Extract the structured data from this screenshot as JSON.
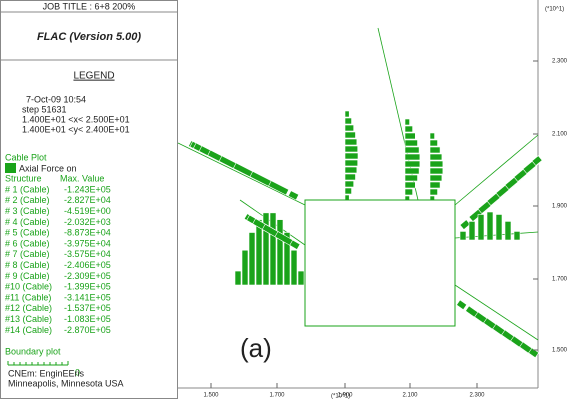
{
  "header": {
    "job_title": "JOB TITLE : 6+8 200%",
    "program": "FLAC (Version 5.00)"
  },
  "legend": {
    "title": "LEGEND",
    "date": "7-Oct-09  10:54",
    "step": "step  51631",
    "xrange": "1.400E+01 <x< 2.500E+01",
    "yrange": "1.400E+01 <y< 2.400E+01",
    "cable_plot": "Cable Plot",
    "axial_force": "Axial Force on",
    "col_structure": "Structure",
    "col_max": "Max. Value",
    "cables": [
      [
        "# 1 (Cable)",
        "-1.243E+05"
      ],
      [
        "# 2 (Cable)",
        "-2.827E+04"
      ],
      [
        "# 3 (Cable)",
        "-4.519E+00"
      ],
      [
        "# 4 (Cable)",
        "-2.032E+03"
      ],
      [
        "# 5 (Cable)",
        "-8.873E+04"
      ],
      [
        "# 6 (Cable)",
        "-3.975E+04"
      ],
      [
        "# 7 (Cable)",
        "-3.575E+04"
      ],
      [
        "# 8 (Cable)",
        "-2.406E+05"
      ],
      [
        "# 9 (Cable)",
        "-2.309E+05"
      ],
      [
        "#10 (Cable)",
        "-1.399E+05"
      ],
      [
        "#11 (Cable)",
        "-3.141E+05"
      ],
      [
        "#12 (Cable)",
        "-1.537E+05"
      ],
      [
        "#13 (Cable)",
        "-1.083E+05"
      ],
      [
        "#14 (Cable)",
        "-2.870E+05"
      ]
    ],
    "boundary_plot": "Boundary plot",
    "scale": "0",
    "footer_1": "CNEm: EnginEEris",
    "footer_2": "Minneapolis, Minnesota  USA"
  },
  "plot": {
    "x_multiplier": "(*10^1)",
    "y_multiplier": "(*10^1)",
    "xticks": [
      "1.500",
      "1.700",
      "1.900",
      "2.100",
      "2.300"
    ],
    "yticks": [
      "2.300",
      "2.100",
      "1.900",
      "1.700",
      "1.500"
    ],
    "label": "(a)"
  }
}
